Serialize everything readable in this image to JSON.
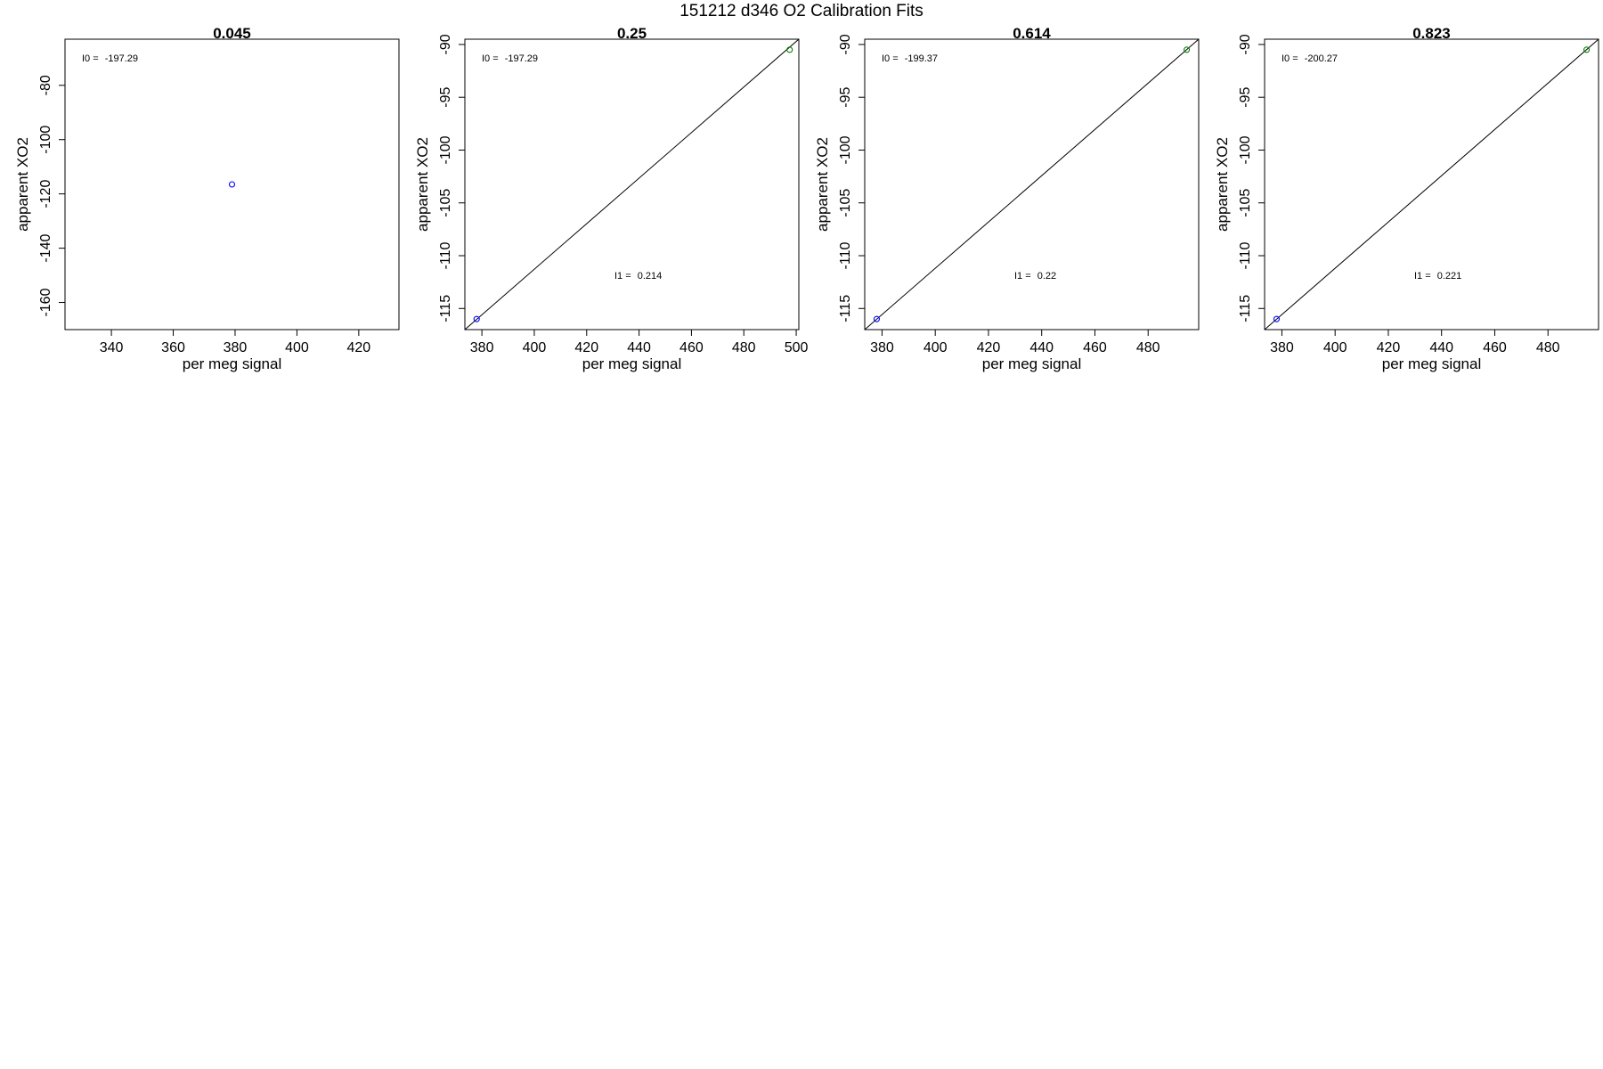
{
  "figure": {
    "title": "151212   d346   O2 Calibration Fits"
  },
  "chart_data": [
    {
      "type": "scatter",
      "title": "0.045",
      "xlabel": "per meg signal",
      "ylabel": "apparent XO2",
      "xlim": [
        325,
        433
      ],
      "ylim": [
        -170,
        -63
      ],
      "xticks": [
        340,
        360,
        380,
        400,
        420
      ],
      "yticks": [
        -80,
        -100,
        -120,
        -140,
        -160
      ],
      "points": [
        {
          "x": 379,
          "y": -116.5,
          "color": "#0000ff"
        }
      ],
      "fit_line": null,
      "annotations": [
        {
          "id": "i0",
          "label": "I0 = ",
          "value": "-197.29"
        }
      ]
    },
    {
      "type": "scatter",
      "title": "0.25",
      "xlabel": "per meg signal",
      "ylabel": "apparent XO2",
      "xlim": [
        373.5,
        501
      ],
      "ylim": [
        -117,
        -89.5
      ],
      "xticks": [
        380,
        400,
        420,
        440,
        460,
        480,
        500
      ],
      "yticks": [
        -90,
        -95,
        -100,
        -105,
        -110,
        -115
      ],
      "points": [
        {
          "x": 378,
          "y": -116,
          "color": "#0000ff"
        },
        {
          "x": 497.5,
          "y": -90.5,
          "color": "#008000"
        }
      ],
      "fit_line": {
        "x0": 373.5,
        "y0": -117,
        "x1": 501,
        "y1": -89.5
      },
      "annotations": [
        {
          "id": "i0",
          "label": "I0 = ",
          "value": "-197.29"
        },
        {
          "id": "i1",
          "label": "I1 = ",
          "value": "0.214"
        }
      ]
    },
    {
      "type": "scatter",
      "title": "0.614",
      "xlabel": "per meg signal",
      "ylabel": "apparent XO2",
      "xlim": [
        373.5,
        499
      ],
      "ylim": [
        -117,
        -89.5
      ],
      "xticks": [
        380,
        400,
        420,
        440,
        460,
        480
      ],
      "yticks": [
        -90,
        -95,
        -100,
        -105,
        -110,
        -115
      ],
      "points": [
        {
          "x": 378,
          "y": -116,
          "color": "#0000ff"
        },
        {
          "x": 494.5,
          "y": -90.5,
          "color": "#008000"
        }
      ],
      "fit_line": {
        "x0": 373.5,
        "y0": -117,
        "x1": 499,
        "y1": -89.5
      },
      "annotations": [
        {
          "id": "i0",
          "label": "I0 = ",
          "value": "-199.37"
        },
        {
          "id": "i1",
          "label": "I1 = ",
          "value": "0.22"
        }
      ]
    },
    {
      "type": "scatter",
      "title": "0.823",
      "xlabel": "per meg signal",
      "ylabel": "apparent XO2",
      "xlim": [
        373.5,
        499
      ],
      "ylim": [
        -117,
        -89.5
      ],
      "xticks": [
        380,
        400,
        420,
        440,
        460,
        480
      ],
      "yticks": [
        -90,
        -95,
        -100,
        -105,
        -110,
        -115
      ],
      "points": [
        {
          "x": 378,
          "y": -116,
          "color": "#0000ff"
        },
        {
          "x": 494.5,
          "y": -90.5,
          "color": "#008000"
        }
      ],
      "fit_line": {
        "x0": 373.5,
        "y0": -117,
        "x1": 499,
        "y1": -89.5
      },
      "annotations": [
        {
          "id": "i0",
          "label": "I0 = ",
          "value": "-200.27"
        },
        {
          "id": "i1",
          "label": "I1 = ",
          "value": "0.221"
        }
      ]
    }
  ]
}
